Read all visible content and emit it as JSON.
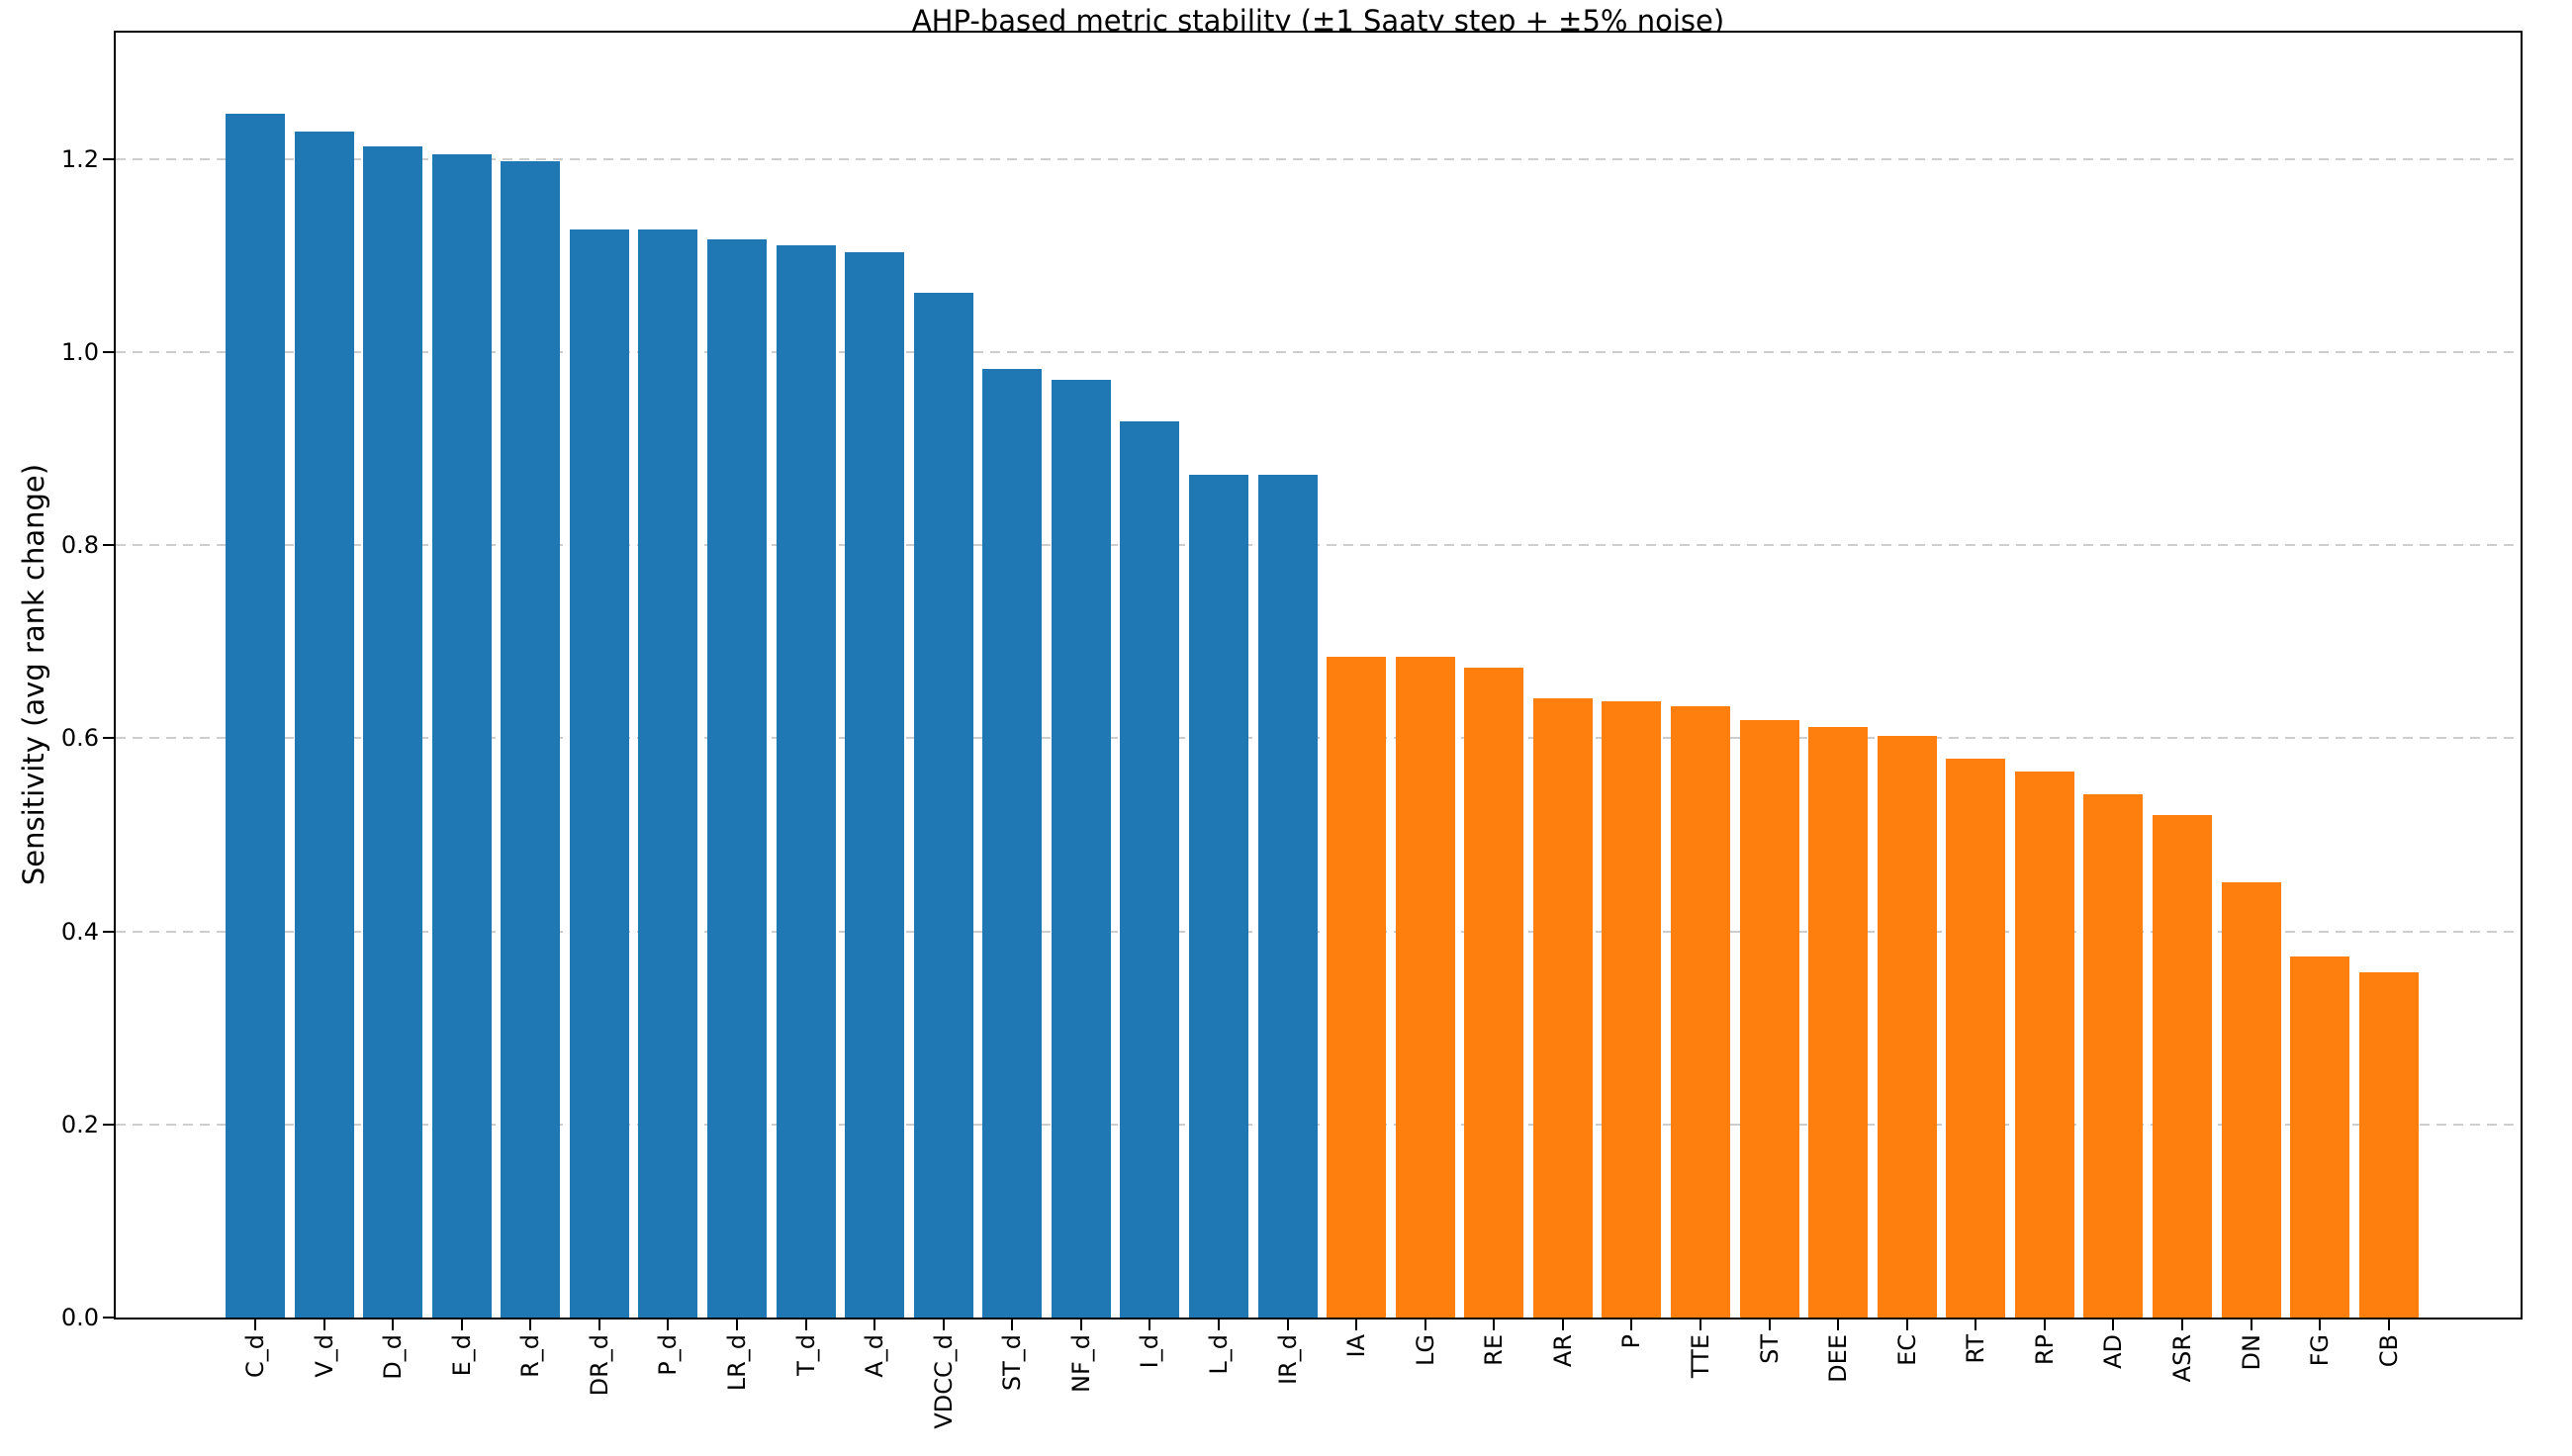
{
  "chart_data": {
    "type": "bar",
    "title": "AHP-based metric stability (±1 Saaty step + ±5% noise)",
    "xlabel": "",
    "ylabel": "Sensitivity (avg rank change)",
    "categories": [
      "C_d",
      "V_d",
      "D_d",
      "E_d",
      "R_d",
      "DR_d",
      "P_d",
      "LR_d",
      "T_d",
      "A_d",
      "VDCC_d",
      "ST_d",
      "NF_d",
      "I_d",
      "L_d",
      "IR_d",
      "IA",
      "LG",
      "RE",
      "AR",
      "P",
      "TTE",
      "ST",
      "DEE",
      "EC",
      "RT",
      "RP",
      "AD",
      "ASR",
      "DN",
      "FG",
      "CB"
    ],
    "values": [
      1.247,
      1.229,
      1.213,
      1.205,
      1.198,
      1.127,
      1.127,
      1.117,
      1.111,
      1.103,
      1.062,
      0.983,
      0.971,
      0.928,
      0.873,
      0.873,
      0.684,
      0.684,
      0.673,
      0.641,
      0.638,
      0.633,
      0.619,
      0.612,
      0.602,
      0.579,
      0.566,
      0.542,
      0.52,
      0.451,
      0.374,
      0.358
    ],
    "bar_colors": [
      "#1f77b4",
      "#1f77b4",
      "#1f77b4",
      "#1f77b4",
      "#1f77b4",
      "#1f77b4",
      "#1f77b4",
      "#1f77b4",
      "#1f77b4",
      "#1f77b4",
      "#1f77b4",
      "#1f77b4",
      "#1f77b4",
      "#1f77b4",
      "#1f77b4",
      "#1f77b4",
      "#ff7f0e",
      "#ff7f0e",
      "#ff7f0e",
      "#ff7f0e",
      "#ff7f0e",
      "#ff7f0e",
      "#ff7f0e",
      "#ff7f0e",
      "#ff7f0e",
      "#ff7f0e",
      "#ff7f0e",
      "#ff7f0e",
      "#ff7f0e",
      "#ff7f0e",
      "#ff7f0e",
      "#ff7f0e"
    ],
    "yticks": [
      "0.0",
      "0.2",
      "0.4",
      "0.6",
      "0.8",
      "1.0",
      "1.2"
    ],
    "ylim": [
      0,
      1.331
    ],
    "grid": "horizontal-dashed",
    "grid_color": "#cdcdcd",
    "legend": null,
    "x_tick_rotation": 90
  }
}
